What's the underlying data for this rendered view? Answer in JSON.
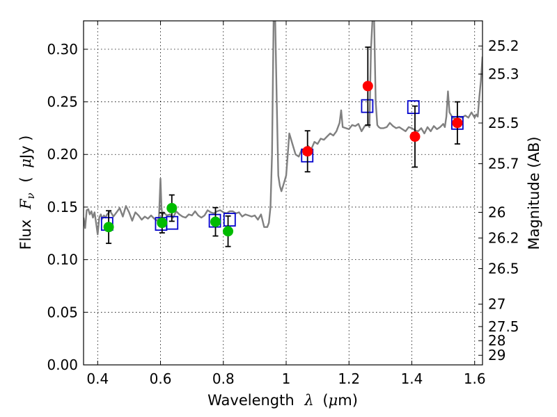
{
  "chart_data": {
    "type": "scatter",
    "title": "",
    "xlabel_parts": {
      "text": "Wavelength",
      "symbol": "λ",
      "unit_open": "(",
      "unit_mu": "μ",
      "unit": "m)"
    },
    "ylabel_parts": {
      "text": "Flux",
      "symbol": "F",
      "sub": "ν",
      "unit_open": "(",
      "unit_mu": "μ",
      "unit": "Jy )"
    },
    "y2label": "Magnitude (AB)",
    "xlim": [
      0.355,
      1.625
    ],
    "ylim": [
      0.0,
      0.327
    ],
    "x_ticks": [
      0.4,
      0.6,
      0.8,
      1.0,
      1.2,
      1.4,
      1.6
    ],
    "x_tick_labels": [
      "0.4",
      "0.6",
      "0.8",
      "1",
      "1.2",
      "1.4",
      "1.6"
    ],
    "y_ticks": [
      0.0,
      0.05,
      0.1,
      0.15,
      0.2,
      0.25,
      0.3
    ],
    "y_tick_labels": [
      "0.00",
      "0.05",
      "0.10",
      "0.15",
      "0.20",
      "0.25",
      "0.30"
    ],
    "y2_ticks": [
      {
        "label": "25.2",
        "flux": 0.3031
      },
      {
        "label": "25.3",
        "flux": 0.2764
      },
      {
        "label": "25.5",
        "flux": 0.2299
      },
      {
        "label": "25.7",
        "flux": 0.1912
      },
      {
        "label": "26",
        "flux": 0.145
      },
      {
        "label": "26.2",
        "flux": 0.1206
      },
      {
        "label": "26.5",
        "flux": 0.0915
      },
      {
        "label": "27",
        "flux": 0.0577
      },
      {
        "label": "27.5",
        "flux": 0.0364
      },
      {
        "label": "28",
        "flux": 0.023
      },
      {
        "label": "29",
        "flux": 0.0091
      }
    ],
    "grid": true,
    "spectrum": {
      "color": "#808080",
      "x": [
        0.355,
        0.36,
        0.365,
        0.37,
        0.375,
        0.38,
        0.385,
        0.39,
        0.395,
        0.4,
        0.405,
        0.41,
        0.415,
        0.42,
        0.425,
        0.43,
        0.44,
        0.45,
        0.46,
        0.47,
        0.48,
        0.49,
        0.5,
        0.51,
        0.52,
        0.53,
        0.54,
        0.55,
        0.56,
        0.57,
        0.58,
        0.59,
        0.595,
        0.6,
        0.603,
        0.606,
        0.61,
        0.62,
        0.63,
        0.64,
        0.65,
        0.66,
        0.67,
        0.68,
        0.69,
        0.7,
        0.71,
        0.72,
        0.73,
        0.74,
        0.75,
        0.76,
        0.77,
        0.78,
        0.79,
        0.8,
        0.81,
        0.82,
        0.83,
        0.84,
        0.85,
        0.86,
        0.87,
        0.88,
        0.89,
        0.9,
        0.91,
        0.92,
        0.93,
        0.94,
        0.945,
        0.95,
        0.955,
        0.96,
        0.965,
        0.97,
        0.975,
        0.98,
        0.985,
        0.99,
        0.995,
        1.0,
        1.005,
        1.01,
        1.02,
        1.03,
        1.04,
        1.05,
        1.06,
        1.07,
        1.08,
        1.09,
        1.1,
        1.11,
        1.12,
        1.13,
        1.14,
        1.15,
        1.16,
        1.17,
        1.175,
        1.18,
        1.19,
        1.2,
        1.21,
        1.22,
        1.23,
        1.24,
        1.25,
        1.26,
        1.265,
        1.27,
        1.275,
        1.28,
        1.285,
        1.29,
        1.295,
        1.3,
        1.31,
        1.32,
        1.33,
        1.34,
        1.35,
        1.36,
        1.37,
        1.38,
        1.39,
        1.4,
        1.41,
        1.42,
        1.43,
        1.44,
        1.45,
        1.46,
        1.47,
        1.48,
        1.49,
        1.5,
        1.505,
        1.51,
        1.515,
        1.52,
        1.53,
        1.54,
        1.55,
        1.56,
        1.57,
        1.58,
        1.59,
        1.6,
        1.605,
        1.61,
        1.615,
        1.62,
        1.625
      ],
      "y": [
        0.14,
        0.13,
        0.147,
        0.148,
        0.143,
        0.146,
        0.14,
        0.145,
        0.135,
        0.124,
        0.14,
        0.143,
        0.139,
        0.142,
        0.14,
        0.143,
        0.146,
        0.141,
        0.145,
        0.149,
        0.141,
        0.151,
        0.145,
        0.137,
        0.145,
        0.142,
        0.138,
        0.141,
        0.139,
        0.142,
        0.139,
        0.137,
        0.14,
        0.177,
        0.15,
        0.142,
        0.145,
        0.142,
        0.143,
        0.14,
        0.146,
        0.143,
        0.141,
        0.14,
        0.143,
        0.142,
        0.146,
        0.142,
        0.14,
        0.142,
        0.147,
        0.145,
        0.144,
        0.146,
        0.147,
        0.145,
        0.144,
        0.146,
        0.146,
        0.144,
        0.145,
        0.141,
        0.143,
        0.142,
        0.141,
        0.142,
        0.138,
        0.143,
        0.131,
        0.131,
        0.135,
        0.15,
        0.2,
        0.33,
        0.33,
        0.25,
        0.18,
        0.17,
        0.165,
        0.17,
        0.175,
        0.18,
        0.2,
        0.22,
        0.21,
        0.2,
        0.198,
        0.205,
        0.2,
        0.208,
        0.205,
        0.212,
        0.21,
        0.215,
        0.214,
        0.217,
        0.22,
        0.218,
        0.222,
        0.23,
        0.242,
        0.226,
        0.225,
        0.224,
        0.228,
        0.227,
        0.229,
        0.222,
        0.227,
        0.228,
        0.226,
        0.3,
        0.33,
        0.33,
        0.25,
        0.228,
        0.226,
        0.225,
        0.225,
        0.226,
        0.23,
        0.227,
        0.225,
        0.226,
        0.224,
        0.222,
        0.226,
        0.225,
        0.223,
        0.222,
        0.225,
        0.22,
        0.226,
        0.222,
        0.227,
        0.224,
        0.226,
        0.229,
        0.226,
        0.236,
        0.26,
        0.24,
        0.235,
        0.234,
        0.236,
        0.235,
        0.237,
        0.235,
        0.24,
        0.235,
        0.238,
        0.236,
        0.255,
        0.27,
        0.293
      ]
    },
    "series": [
      {
        "marker": "circle",
        "color": "#00bb00",
        "points": [
          {
            "x": 0.435,
            "y": 0.131,
            "err": 0.0155
          },
          {
            "x": 0.605,
            "y": 0.135,
            "err": 0.0095
          },
          {
            "x": 0.636,
            "y": 0.149,
            "err": 0.0125
          },
          {
            "x": 0.775,
            "y": 0.136,
            "err": 0.0135
          },
          {
            "x": 0.815,
            "y": 0.127,
            "err": 0.0145
          }
        ]
      },
      {
        "marker": "circle",
        "color": "#ff0000",
        "points": [
          {
            "x": 1.068,
            "y": 0.203,
            "err": 0.0195
          },
          {
            "x": 1.26,
            "y": 0.265,
            "err": 0.037
          },
          {
            "x": 1.41,
            "y": 0.217,
            "err": 0.029
          },
          {
            "x": 1.545,
            "y": 0.23,
            "err": 0.02
          }
        ]
      },
      {
        "marker": "square-open",
        "color": "#0000cc",
        "points": [
          {
            "x": 0.43,
            "y": 0.134
          },
          {
            "x": 0.602,
            "y": 0.134
          },
          {
            "x": 0.637,
            "y": 0.135
          },
          {
            "x": 0.773,
            "y": 0.137
          },
          {
            "x": 0.82,
            "y": 0.138
          },
          {
            "x": 1.067,
            "y": 0.199
          },
          {
            "x": 1.258,
            "y": 0.246
          },
          {
            "x": 1.405,
            "y": 0.245
          },
          {
            "x": 1.545,
            "y": 0.23
          }
        ]
      }
    ]
  }
}
